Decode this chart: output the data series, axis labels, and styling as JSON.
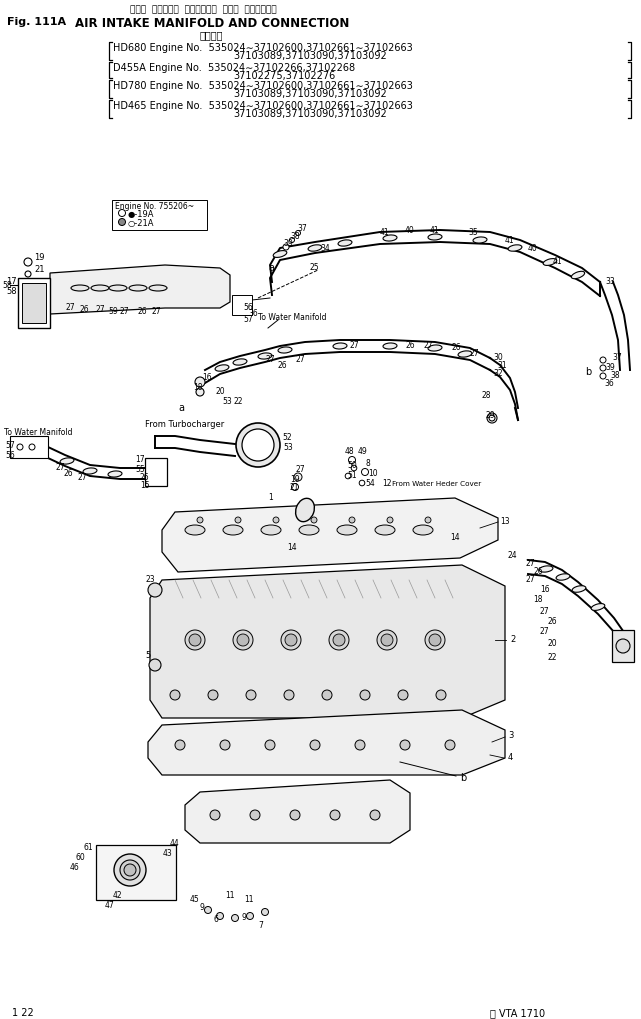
{
  "title_jp": "エアー  インテーク  マニホールド  および  コネクション",
  "title_en": "AIR INTAKE MANIFOLD AND CONNECTION",
  "fig_label": "Fig. 111A",
  "applicable_label": "適用号機",
  "engine_groups": [
    {
      "model": "HD680",
      "line1": "535024∼37102600,37102661∼37102663",
      "line2": "37103089,37103090,37103092"
    },
    {
      "model": "D455A",
      "line1": "535024∼37102266,37102268",
      "line2": "37102275,37102276"
    },
    {
      "model": "HD780",
      "line1": "535024∼37102600,37102661∼37102663",
      "line2": "37103089,37103090,37103092"
    },
    {
      "model": "HD465",
      "line1": "535024∼37102600,37102661∼37102663",
      "line2": "37103089,37103090,37103092"
    }
  ],
  "page_label": "1 22",
  "model_label": "ⓘ VTA 1710",
  "bg_color": "#ffffff",
  "lc": "#000000",
  "tc": "#000000",
  "fig_w": 641,
  "fig_h": 1019
}
